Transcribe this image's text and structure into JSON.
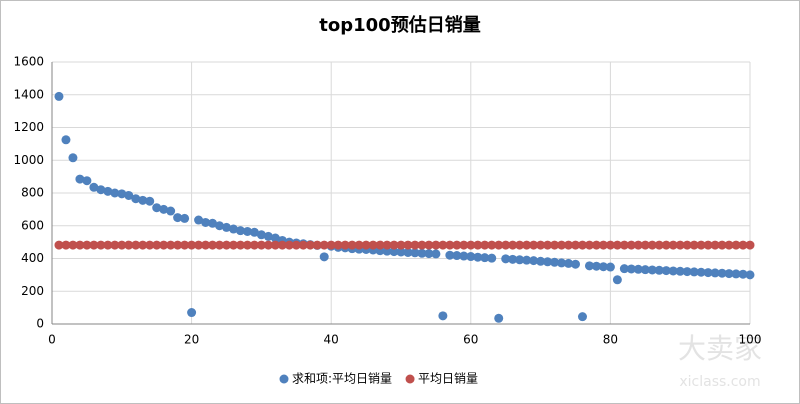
{
  "chart_data": {
    "type": "scatter",
    "title": "top100预估日销量",
    "x": [
      1,
      2,
      3,
      4,
      5,
      6,
      7,
      8,
      9,
      10,
      11,
      12,
      13,
      14,
      15,
      16,
      17,
      18,
      19,
      20,
      21,
      22,
      23,
      24,
      25,
      26,
      27,
      28,
      29,
      30,
      31,
      32,
      33,
      34,
      35,
      36,
      37,
      38,
      39,
      40,
      41,
      42,
      43,
      44,
      45,
      46,
      47,
      48,
      49,
      50,
      51,
      52,
      53,
      54,
      55,
      56,
      57,
      58,
      59,
      60,
      61,
      62,
      63,
      64,
      65,
      66,
      67,
      68,
      69,
      70,
      71,
      72,
      73,
      74,
      75,
      76,
      77,
      78,
      79,
      80,
      81,
      82,
      83,
      84,
      85,
      86,
      87,
      88,
      89,
      90,
      91,
      92,
      93,
      94,
      95,
      96,
      97,
      98,
      99,
      100
    ],
    "series": [
      {
        "name": "求和项:平均日销量",
        "color": "#4f81bd",
        "values": [
          1390,
          1125,
          1015,
          885,
          875,
          835,
          820,
          810,
          800,
          795,
          785,
          765,
          755,
          750,
          710,
          700,
          690,
          650,
          645,
          70,
          635,
          620,
          615,
          600,
          590,
          580,
          570,
          565,
          560,
          545,
          535,
          525,
          510,
          500,
          495,
          490,
          485,
          480,
          410,
          475,
          468,
          465,
          460,
          457,
          455,
          452,
          448,
          445,
          442,
          440,
          437,
          435,
          432,
          430,
          428,
          50,
          420,
          418,
          415,
          412,
          408,
          405,
          402,
          35,
          398,
          395,
          392,
          390,
          387,
          383,
          380,
          377,
          373,
          370,
          365,
          45,
          355,
          353,
          350,
          348,
          270,
          338,
          336,
          334,
          332,
          330,
          328,
          326,
          324,
          322,
          320,
          318,
          316,
          314,
          312,
          310,
          308,
          306,
          304,
          300
        ]
      },
      {
        "name": "平均日销量",
        "color": "#c0504d",
        "values": [
          482,
          482,
          482,
          482,
          482,
          482,
          482,
          482,
          482,
          482,
          482,
          482,
          482,
          482,
          482,
          482,
          482,
          482,
          482,
          482,
          482,
          482,
          482,
          482,
          482,
          482,
          482,
          482,
          482,
          482,
          482,
          482,
          482,
          482,
          482,
          482,
          482,
          482,
          482,
          482,
          482,
          482,
          482,
          482,
          482,
          482,
          482,
          482,
          482,
          482,
          482,
          482,
          482,
          482,
          482,
          482,
          482,
          482,
          482,
          482,
          482,
          482,
          482,
          482,
          482,
          482,
          482,
          482,
          482,
          482,
          482,
          482,
          482,
          482,
          482,
          482,
          482,
          482,
          482,
          482,
          482,
          482,
          482,
          482,
          482,
          482,
          482,
          482,
          482,
          482,
          482,
          482,
          482,
          482,
          482,
          482,
          482,
          482,
          482,
          482
        ]
      }
    ],
    "xlim": [
      0,
      100
    ],
    "xticks": [
      0,
      20,
      40,
      60,
      80,
      100
    ],
    "ylim": [
      0,
      1600
    ],
    "yticks": [
      0,
      200,
      400,
      600,
      800,
      1000,
      1200,
      1400,
      1600
    ],
    "grid": true,
    "legend": "bottom"
  },
  "watermark": {
    "brand": "大卖家",
    "url": "xiclass.com"
  }
}
